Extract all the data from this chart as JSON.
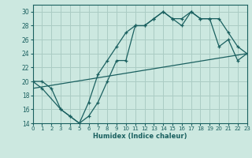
{
  "xlabel": "Humidex (Indice chaleur)",
  "bg_color": "#cce8e0",
  "grid_color": "#aaccc4",
  "line_color": "#1a6060",
  "xlim": [
    0,
    23
  ],
  "ylim": [
    14,
    31
  ],
  "xticks": [
    0,
    1,
    2,
    3,
    4,
    5,
    6,
    7,
    8,
    9,
    10,
    11,
    12,
    13,
    14,
    15,
    16,
    17,
    18,
    19,
    20,
    21,
    22,
    23
  ],
  "yticks": [
    14,
    16,
    18,
    20,
    22,
    24,
    26,
    28,
    30
  ],
  "line1_x": [
    0,
    1,
    2,
    3,
    4,
    5,
    6,
    7,
    8,
    9,
    10,
    11,
    12,
    13,
    14,
    15,
    16,
    17,
    18,
    19,
    20,
    21,
    22,
    23
  ],
  "line1_y": [
    20,
    20,
    19,
    16,
    15,
    14,
    15,
    17,
    20,
    23,
    23,
    28,
    28,
    29,
    30,
    29,
    28,
    30,
    29,
    29,
    25,
    26,
    23,
    24
  ],
  "line2_x": [
    0,
    1,
    3,
    4,
    5,
    6,
    7,
    8,
    9,
    10,
    11,
    12,
    13,
    14,
    15,
    16,
    17,
    18,
    19,
    20,
    21,
    22,
    23
  ],
  "line2_y": [
    20,
    19,
    16,
    15,
    14,
    17,
    21,
    23,
    25,
    27,
    28,
    28,
    29,
    30,
    29,
    29,
    30,
    29,
    29,
    29,
    27,
    25,
    24
  ],
  "line3_x": [
    0,
    23
  ],
  "line3_y": [
    19,
    24
  ]
}
